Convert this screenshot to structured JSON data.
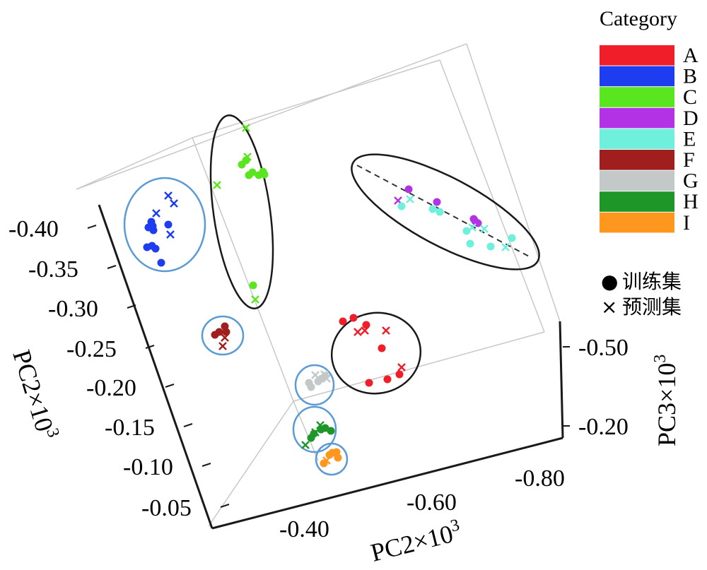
{
  "chart_data": {
    "type": "scatter",
    "projection": "3d",
    "title": "",
    "axes": {
      "left": {
        "label": "PC2×10",
        "label_sup": "3",
        "ticks": [
          "-0.40",
          "-0.35",
          "-0.30",
          "-0.25",
          "-0.20",
          "-0.15",
          "-0.10",
          "-0.05"
        ]
      },
      "bottom": {
        "label": "PC2×10",
        "label_sup": "3",
        "ticks": [
          "-0.40",
          "-0.60",
          "-0.80"
        ]
      },
      "right": {
        "label": "PC3×10",
        "label_sup": "3",
        "ticks": [
          "-0.50",
          "-0.20"
        ]
      }
    },
    "legend": {
      "title": "Category",
      "placement": "right",
      "entries": [
        {
          "name": "A",
          "color": "#f01e28"
        },
        {
          "name": "B",
          "color": "#1e3cf0"
        },
        {
          "name": "C",
          "color": "#5ae61e"
        },
        {
          "name": "D",
          "color": "#b432e6"
        },
        {
          "name": "E",
          "color": "#6ef0dc"
        },
        {
          "name": "F",
          "color": "#a01e1e"
        },
        {
          "name": "G",
          "color": "#c3c8c8"
        },
        {
          "name": "H",
          "color": "#1e9628"
        },
        {
          "name": "I",
          "color": "#ff961e"
        }
      ],
      "markers": [
        {
          "symbol": "●",
          "label": "训练集"
        },
        {
          "symbol": "×",
          "label": "预测集"
        }
      ]
    },
    "series": [
      {
        "category": "A",
        "color": "#f01e28",
        "train": [
          [
            500,
            450
          ],
          [
            518,
            460
          ],
          [
            540,
            493
          ],
          [
            522,
            542
          ],
          [
            548,
            537
          ],
          [
            565,
            530
          ],
          [
            485,
            455
          ]
        ],
        "test": [
          [
            506,
            470
          ],
          [
            516,
            468
          ],
          [
            546,
            468
          ],
          [
            568,
            520
          ]
        ]
      },
      {
        "category": "B",
        "color": "#1e3cf0",
        "train": [
          [
            214,
            314
          ],
          [
            216,
            320
          ],
          [
            217,
            326
          ],
          [
            238,
            318
          ],
          [
            210,
            322
          ],
          [
            215,
            348
          ],
          [
            208,
            350
          ],
          [
            220,
            352
          ],
          [
            228,
            372
          ]
        ],
        "test": [
          [
            238,
            277
          ],
          [
            221,
            302
          ],
          [
            246,
            288
          ],
          [
            241,
            332
          ]
        ]
      },
      {
        "category": "C",
        "color": "#5ae61e",
        "train": [
          [
            342,
            233
          ],
          [
            348,
            227
          ],
          [
            352,
            248
          ],
          [
            357,
            244
          ],
          [
            372,
            243
          ],
          [
            374,
            247
          ],
          [
            358,
            404
          ],
          [
            366,
            248
          ]
        ],
        "test": [
          [
            348,
            181
          ],
          [
            350,
            222
          ],
          [
            307,
            262
          ],
          [
            361,
            424
          ]
        ]
      },
      {
        "category": "D",
        "color": "#b432e6",
        "train": [
          [
            578,
            268
          ],
          [
            618,
            286
          ],
          [
            672,
            313
          ],
          [
            676,
            316
          ],
          [
            670,
            310
          ]
        ],
        "test": [
          [
            563,
            284
          ]
        ]
      },
      {
        "category": "E",
        "color": "#6ef0dc",
        "train": [
          [
            568,
            292
          ],
          [
            612,
            296
          ],
          [
            622,
            300
          ],
          [
            660,
            327
          ],
          [
            694,
            349
          ],
          [
            724,
            337
          ],
          [
            665,
            345
          ]
        ],
        "test": [
          [
            580,
            282
          ],
          [
            668,
            322
          ],
          [
            685,
            324
          ],
          [
            715,
            350
          ]
        ]
      },
      {
        "category": "F",
        "color": "#a01e1e",
        "train": [
          [
            310,
            470
          ],
          [
            318,
            462
          ],
          [
            304,
            474
          ],
          [
            320,
            470
          ]
        ],
        "test": [
          [
            315,
            490
          ],
          [
            318,
            478
          ]
        ]
      },
      {
        "category": "G",
        "color": "#c3c8c8",
        "train": [
          [
            440,
            548
          ],
          [
            455,
            536
          ],
          [
            460,
            532
          ],
          [
            437,
            542
          ],
          [
            450,
            540
          ]
        ],
        "test": [
          [
            446,
            531
          ],
          [
            462,
            536
          ],
          [
            459,
            530
          ]
        ]
      },
      {
        "category": "H",
        "color": "#1e9628",
        "train": [
          [
            444,
            614
          ],
          [
            440,
            620
          ],
          [
            460,
            606
          ],
          [
            468,
            610
          ],
          [
            454,
            608
          ]
        ],
        "test": [
          [
            432,
            630
          ],
          [
            453,
            602
          ],
          [
            446,
            612
          ]
        ]
      },
      {
        "category": "I",
        "color": "#ff961e",
        "train": [
          [
            458,
            656
          ],
          [
            466,
            644
          ],
          [
            476,
            640
          ],
          [
            478,
            648
          ],
          [
            470,
            641
          ]
        ],
        "test": [
          [
            462,
            652
          ]
        ]
      }
    ],
    "clusters": [
      {
        "name": "B",
        "stroke": "#5b9bd5"
      },
      {
        "name": "C",
        "stroke": "#1a1a1a"
      },
      {
        "name": "D-E",
        "stroke": "#1a1a1a"
      },
      {
        "name": "F",
        "stroke": "#5b9bd5"
      },
      {
        "name": "A",
        "stroke": "#1a1a1a"
      },
      {
        "name": "G",
        "stroke": "#5b9bd5"
      },
      {
        "name": "H",
        "stroke": "#5b9bd5"
      },
      {
        "name": "I",
        "stroke": "#5b9bd5"
      }
    ],
    "grid": true
  }
}
